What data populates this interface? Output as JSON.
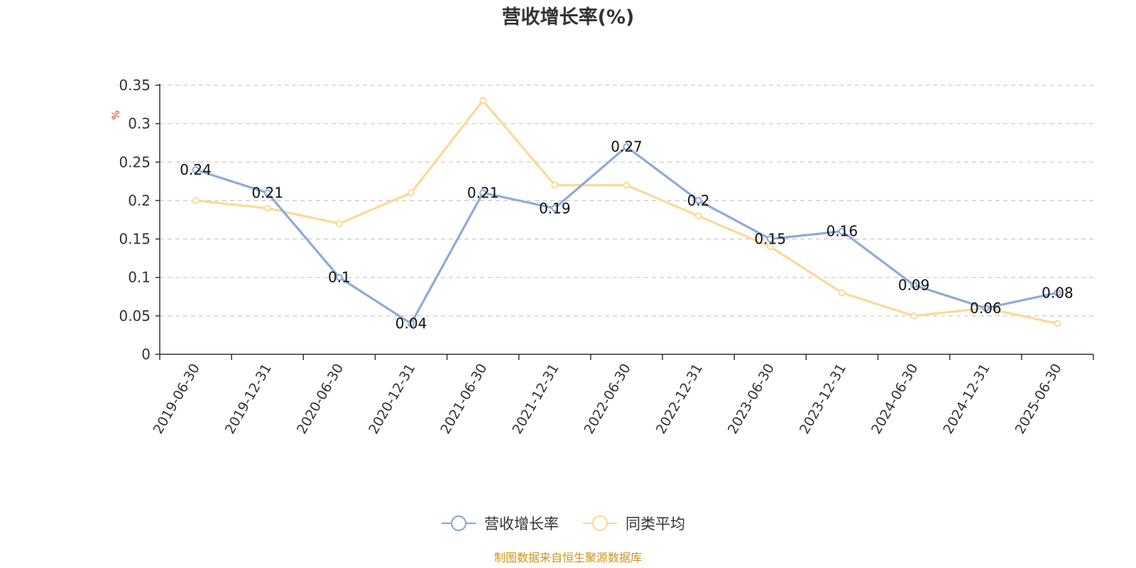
{
  "chart_data": {
    "type": "line",
    "title": "营收增长率(%)",
    "ylabel": "%",
    "categories": [
      "2019-06-30",
      "2019-12-31",
      "2020-06-30",
      "2020-12-31",
      "2021-06-30",
      "2021-12-31",
      "2022-06-30",
      "2022-12-31",
      "2023-06-30",
      "2023-12-31",
      "2024-06-30",
      "2024-12-31",
      "2025-06-30"
    ],
    "ylim": [
      0,
      0.35
    ],
    "yticks": [
      "0",
      "0.05",
      "0.1",
      "0.15",
      "0.2",
      "0.25",
      "0.3",
      "0.35"
    ],
    "grid": true,
    "legend_position": "bottom-center",
    "series": [
      {
        "name": "营收增长率",
        "color": "#8eaad9",
        "values": [
          0.24,
          0.21,
          0.1,
          0.04,
          0.21,
          0.19,
          0.27,
          0.2,
          0.15,
          0.16,
          0.09,
          0.06,
          0.08
        ],
        "labels": [
          "0.24",
          "0.21",
          "0.1",
          "0.04",
          "0.21",
          "0.19",
          "0.27",
          "0.2",
          "0.15",
          "0.16",
          "0.09",
          "0.06",
          "0.08"
        ]
      },
      {
        "name": "同类平均",
        "color": "#fcd998",
        "values": [
          0.2,
          0.19,
          0.17,
          0.21,
          0.33,
          0.22,
          0.22,
          0.18,
          0.14,
          0.08,
          0.05,
          0.06,
          0.04
        ]
      }
    ]
  },
  "colors": {
    "unit_label": "#e03030",
    "source_text": "#c8961e",
    "grid": "#cccccc",
    "axis": "#333333"
  },
  "source": "制图数据来自恒生聚源数据库"
}
